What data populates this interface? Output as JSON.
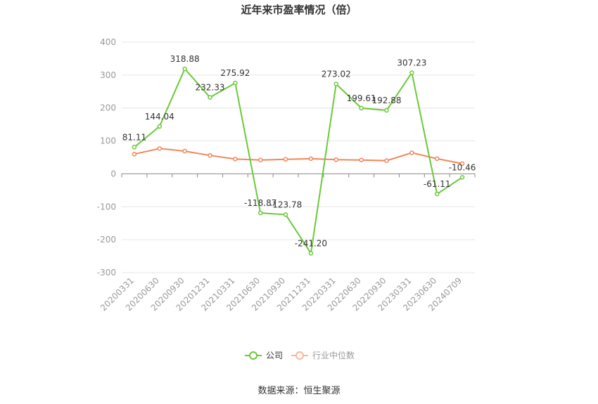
{
  "chart_data": {
    "type": "line",
    "title": "近年来市盈率情况（倍）",
    "categories": [
      "20200331",
      "20200630",
      "20200930",
      "20201231",
      "20210331",
      "20210630",
      "20210930",
      "20211231",
      "20220331",
      "20220630",
      "20220930",
      "20230331",
      "20230630",
      "20240709"
    ],
    "series": [
      {
        "name": "公司",
        "color": "#6bc93a",
        "values": [
          81.11,
          144.04,
          318.88,
          232.33,
          275.92,
          -118.87,
          -123.78,
          -241.2,
          273.02,
          199.61,
          192.88,
          307.23,
          -61.11,
          -10.46
        ],
        "labels": [
          "81.11",
          "144.04",
          "318.88",
          "232.33",
          "275.92",
          "-118.87",
          "-123.78",
          "-241.20",
          "273.02",
          "199.61",
          "192.88",
          "307.23",
          "-61.11",
          "-10.46"
        ]
      },
      {
        "name": "行业中位数",
        "color": "#f0875a",
        "values": [
          60,
          77,
          69,
          56,
          45,
          42,
          44,
          46,
          43,
          42,
          40,
          64,
          46,
          31
        ]
      }
    ],
    "ylim": [
      -300,
      400
    ],
    "yticks": [
      400,
      300,
      200,
      100,
      0,
      -100,
      -200,
      -300
    ],
    "grid": true,
    "legend": "bottom-center"
  },
  "footer": {
    "source": "数据来源：恒生聚源"
  }
}
